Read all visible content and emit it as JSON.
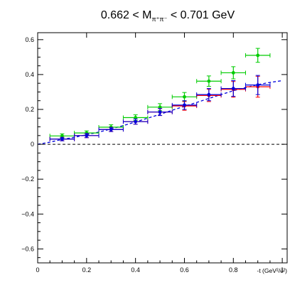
{
  "chart_data": {
    "type": "scatter",
    "title": {
      "prefix": "0.662 < M",
      "subscript": "π⁺π⁻",
      "suffix": " < 0.701 GeV"
    },
    "xlabel": "-t (GeV²/c²)",
    "ylabel": "",
    "xlim": [
      0,
      1.02
    ],
    "ylim": [
      -0.68,
      0.64
    ],
    "x_ticks": [
      {
        "value": 0,
        "label": "0"
      },
      {
        "value": 0.2,
        "label": "0.2"
      },
      {
        "value": 0.4,
        "label": "0.4"
      },
      {
        "value": 0.6,
        "label": "0.6"
      },
      {
        "value": 0.8,
        "label": "0.8"
      },
      {
        "value": 1.0,
        "label": "1"
      }
    ],
    "y_ticks": [
      {
        "value": -0.6,
        "label": "−0.6"
      },
      {
        "value": -0.4,
        "label": "−0.4"
      },
      {
        "value": -0.2,
        "label": "−0.2"
      },
      {
        "value": 0,
        "label": "0"
      },
      {
        "value": 0.2,
        "label": "0.2"
      },
      {
        "value": 0.4,
        "label": "0.4"
      },
      {
        "value": 0.6,
        "label": "0.6"
      }
    ],
    "grid": false,
    "zero_line": {
      "y": 0,
      "style": "dashed"
    },
    "series": [
      {
        "color": "#00cc00",
        "points": [
          {
            "x": 0.1,
            "y": 0.048,
            "xerr": 0.05,
            "yerr": 0.012
          },
          {
            "x": 0.2,
            "y": 0.065,
            "xerr": 0.05,
            "yerr": 0.012
          },
          {
            "x": 0.3,
            "y": 0.098,
            "xerr": 0.05,
            "yerr": 0.014
          },
          {
            "x": 0.4,
            "y": 0.153,
            "xerr": 0.05,
            "yerr": 0.016
          },
          {
            "x": 0.5,
            "y": 0.213,
            "xerr": 0.05,
            "yerr": 0.02
          },
          {
            "x": 0.6,
            "y": 0.272,
            "xerr": 0.05,
            "yerr": 0.025
          },
          {
            "x": 0.7,
            "y": 0.362,
            "xerr": 0.05,
            "yerr": 0.03
          },
          {
            "x": 0.8,
            "y": 0.41,
            "xerr": 0.05,
            "yerr": 0.035
          },
          {
            "x": 0.9,
            "y": 0.51,
            "xerr": 0.05,
            "yerr": 0.04
          }
        ]
      },
      {
        "color": "#ff0000",
        "points": [
          {
            "x": 0.1,
            "y": 0.03,
            "xerr": 0.05,
            "yerr": 0.01
          },
          {
            "x": 0.2,
            "y": 0.05,
            "xerr": 0.05,
            "yerr": 0.012
          },
          {
            "x": 0.3,
            "y": 0.085,
            "xerr": 0.05,
            "yerr": 0.012
          },
          {
            "x": 0.4,
            "y": 0.13,
            "xerr": 0.05,
            "yerr": 0.015
          },
          {
            "x": 0.5,
            "y": 0.185,
            "xerr": 0.05,
            "yerr": 0.02
          },
          {
            "x": 0.6,
            "y": 0.22,
            "xerr": 0.05,
            "yerr": 0.025
          },
          {
            "x": 0.7,
            "y": 0.28,
            "xerr": 0.05,
            "yerr": 0.035
          },
          {
            "x": 0.8,
            "y": 0.315,
            "xerr": 0.05,
            "yerr": 0.045
          },
          {
            "x": 0.9,
            "y": 0.33,
            "xerr": 0.05,
            "yerr": 0.06
          }
        ]
      },
      {
        "color": "#0000dd",
        "points": [
          {
            "x": 0.1,
            "y": 0.03,
            "xerr": 0.05,
            "yerr": 0.01
          },
          {
            "x": 0.2,
            "y": 0.05,
            "xerr": 0.05,
            "yerr": 0.012
          },
          {
            "x": 0.3,
            "y": 0.085,
            "xerr": 0.05,
            "yerr": 0.012
          },
          {
            "x": 0.4,
            "y": 0.13,
            "xerr": 0.05,
            "yerr": 0.015
          },
          {
            "x": 0.5,
            "y": 0.185,
            "xerr": 0.05,
            "yerr": 0.02
          },
          {
            "x": 0.6,
            "y": 0.225,
            "xerr": 0.05,
            "yerr": 0.025
          },
          {
            "x": 0.7,
            "y": 0.285,
            "xerr": 0.05,
            "yerr": 0.035
          },
          {
            "x": 0.8,
            "y": 0.32,
            "xerr": 0.05,
            "yerr": 0.045
          },
          {
            "x": 0.9,
            "y": 0.34,
            "xerr": 0.05,
            "yerr": 0.055
          }
        ]
      }
    ],
    "curve": {
      "color": "#0000dd",
      "style": "dashed",
      "points": [
        [
          0.0,
          0.0
        ],
        [
          0.05,
          0.012
        ],
        [
          0.1,
          0.028
        ],
        [
          0.15,
          0.04
        ],
        [
          0.2,
          0.055
        ],
        [
          0.25,
          0.07
        ],
        [
          0.3,
          0.088
        ],
        [
          0.35,
          0.107
        ],
        [
          0.4,
          0.128
        ],
        [
          0.45,
          0.15
        ],
        [
          0.5,
          0.172
        ],
        [
          0.55,
          0.195
        ],
        [
          0.6,
          0.218
        ],
        [
          0.65,
          0.24
        ],
        [
          0.7,
          0.263
        ],
        [
          0.75,
          0.285
        ],
        [
          0.8,
          0.307
        ],
        [
          0.85,
          0.325
        ],
        [
          0.9,
          0.342
        ],
        [
          0.95,
          0.355
        ],
        [
          1.0,
          0.365
        ]
      ]
    }
  }
}
